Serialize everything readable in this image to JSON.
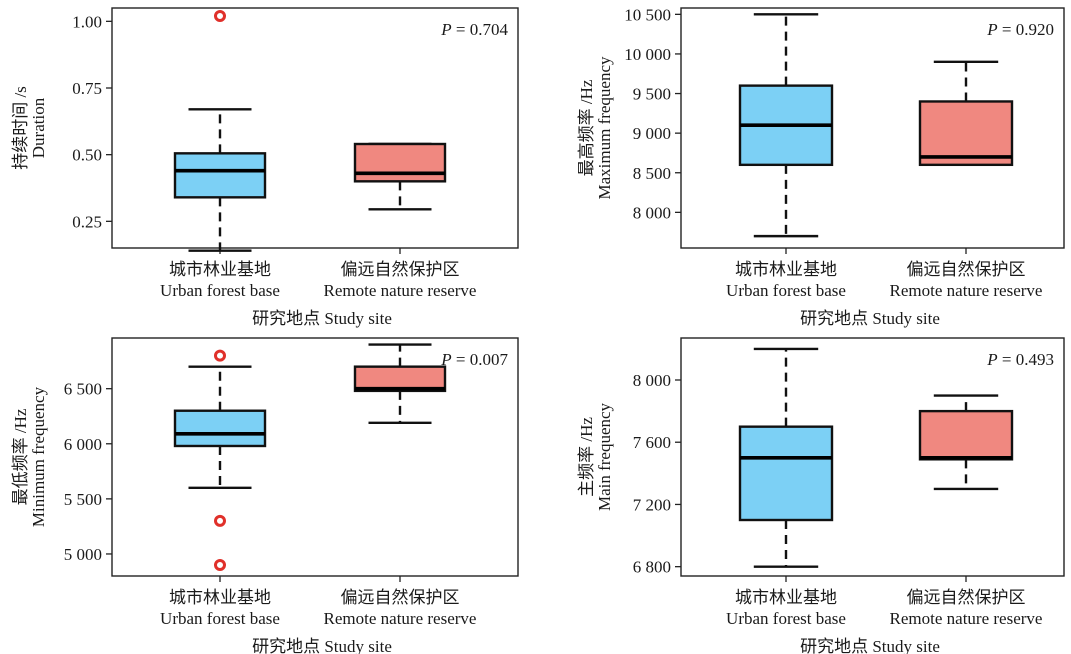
{
  "colors": {
    "urban": "#7cd0f5",
    "remote": "#f08880",
    "outlier": "#e0302a"
  },
  "chart_data": [
    {
      "type": "box",
      "ylabel_cn": "持续时间 /s",
      "ylabel_en": "Duration",
      "ylim": [
        0.15,
        1.05
      ],
      "yticks": [
        0.25,
        0.5,
        0.75,
        1.0
      ],
      "yticklabels": [
        "0.25",
        "0.50",
        "0.75",
        "1.00"
      ],
      "p_prefix": "P",
      "p_value": " = 0.704",
      "categories_cn": [
        "城市林业基地",
        "偏远自然保护区"
      ],
      "categories_en": [
        "Urban forest base",
        "Remote nature reserve"
      ],
      "xlabel": "研究地点 Study site",
      "boxes": [
        {
          "group": "urban",
          "whislo": 0.14,
          "q1": 0.34,
          "med": 0.44,
          "q3": 0.505,
          "whishi": 0.67,
          "outliers": [
            1.02
          ]
        },
        {
          "group": "remote",
          "whislo": 0.295,
          "q1": 0.4,
          "med": 0.43,
          "q3": 0.54,
          "whishi": 0.54,
          "outliers": []
        }
      ]
    },
    {
      "type": "box",
      "ylabel_cn": "最高频率 /Hz",
      "ylabel_en": "Maximum frequency",
      "ylim": [
        7550,
        10580
      ],
      "yticks": [
        8000,
        8500,
        9000,
        9500,
        10000,
        10500
      ],
      "yticklabels": [
        "8 000",
        "8 500",
        "9 000",
        "9 500",
        "10 000",
        "10 500"
      ],
      "p_prefix": "P",
      "p_value": " = 0.920",
      "categories_cn": [
        "城市林业基地",
        "偏远自然保护区"
      ],
      "categories_en": [
        "Urban forest base",
        "Remote nature reserve"
      ],
      "xlabel": "研究地点 Study site",
      "boxes": [
        {
          "group": "urban",
          "whislo": 7700,
          "q1": 8600,
          "med": 9100,
          "q3": 9600,
          "whishi": 10500,
          "outliers": []
        },
        {
          "group": "remote",
          "whislo": 8600,
          "q1": 8600,
          "med": 8700,
          "q3": 9400,
          "whishi": 9900,
          "outliers": []
        }
      ]
    },
    {
      "type": "box",
      "ylabel_cn": "最低频率 /Hz",
      "ylabel_en": "Minimum frequency",
      "ylim": [
        4800,
        6960
      ],
      "yticks": [
        5000,
        5500,
        6000,
        6500
      ],
      "yticklabels": [
        "5 000",
        "5 500",
        "6 000",
        "6 500"
      ],
      "p_prefix": "P",
      "p_value": " = 0.007",
      "categories_cn": [
        "城市林业基地",
        "偏远自然保护区"
      ],
      "categories_en": [
        "Urban forest base",
        "Remote nature reserve"
      ],
      "xlabel": "研究地点 Study site",
      "boxes": [
        {
          "group": "urban",
          "whislo": 5600,
          "q1": 5980,
          "med": 6090,
          "q3": 6300,
          "whishi": 6700,
          "outliers": [
            6800,
            5300,
            4900
          ]
        },
        {
          "group": "remote",
          "whislo": 6190,
          "q1": 6480,
          "med": 6500,
          "q3": 6700,
          "whishi": 6900,
          "outliers": []
        }
      ]
    },
    {
      "type": "box",
      "ylabel_cn": "主频率 /Hz",
      "ylabel_en": "Main frequency",
      "ylim": [
        6740,
        8270
      ],
      "yticks": [
        6800,
        7200,
        7600,
        8000
      ],
      "yticklabels": [
        "6 800",
        "7 200",
        "7 600",
        "8 000"
      ],
      "p_prefix": "P",
      "p_value": " = 0.493",
      "categories_cn": [
        "城市林业基地",
        "偏远自然保护区"
      ],
      "categories_en": [
        "Urban forest base",
        "Remote nature reserve"
      ],
      "xlabel": "研究地点 Study site",
      "boxes": [
        {
          "group": "urban",
          "whislo": 6800,
          "q1": 7100,
          "med": 7500,
          "q3": 7700,
          "whishi": 8200,
          "outliers": []
        },
        {
          "group": "remote",
          "whislo": 7300,
          "q1": 7490,
          "med": 7500,
          "q3": 7800,
          "whishi": 7900,
          "outliers": []
        }
      ]
    }
  ]
}
